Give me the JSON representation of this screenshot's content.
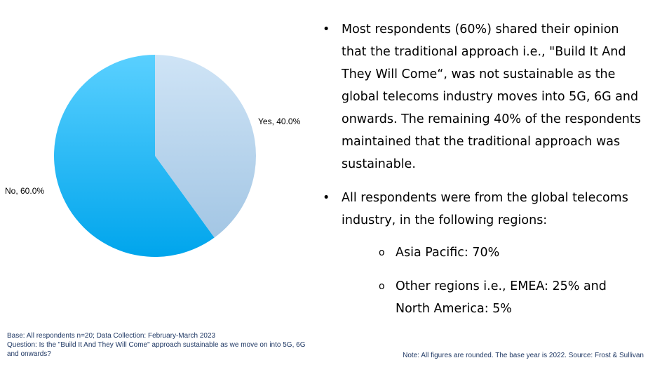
{
  "chart_data": {
    "type": "pie",
    "slices": [
      {
        "label": "Yes",
        "value": 40.0,
        "display": "Yes, 40.0%"
      },
      {
        "label": "No",
        "value": 60.0,
        "display": "No, 60.0%"
      }
    ],
    "colors": {
      "yes_light": "#cfe4f6",
      "yes_dark": "#a3c6e4",
      "no_light": "#5ad0ff",
      "no_dark": "#00a5ec"
    }
  },
  "bullets": [
    {
      "text": "Most respondents (60%) shared their opinion that the traditional approach i.e., \"Build It And They Will Come“, was not sustainable as the global telecoms industry moves into 5G, 6G and onwards. The remaining 40% of the respondents maintained that the traditional approach was sustainable."
    },
    {
      "text": "All respondents were from the global telecoms industry, in the following regions:",
      "subs": [
        {
          "text": "Asia Pacific: 70%"
        },
        {
          "text": "Other regions i.e., EMEA: 25% and North America: 5%"
        }
      ]
    }
  ],
  "bullet_glyph": "•",
  "sub_glyph": "o",
  "footnote": {
    "base": "Base: All respondents n=20; Data Collection: February-March 2023",
    "question": "Question: Is the \"Build It And They Will Come\" approach sustainable as we move on into 5G, 6G and onwards?",
    "note": "Note: All figures are rounded. The base year is 2022. Source: Frost & Sullivan"
  }
}
